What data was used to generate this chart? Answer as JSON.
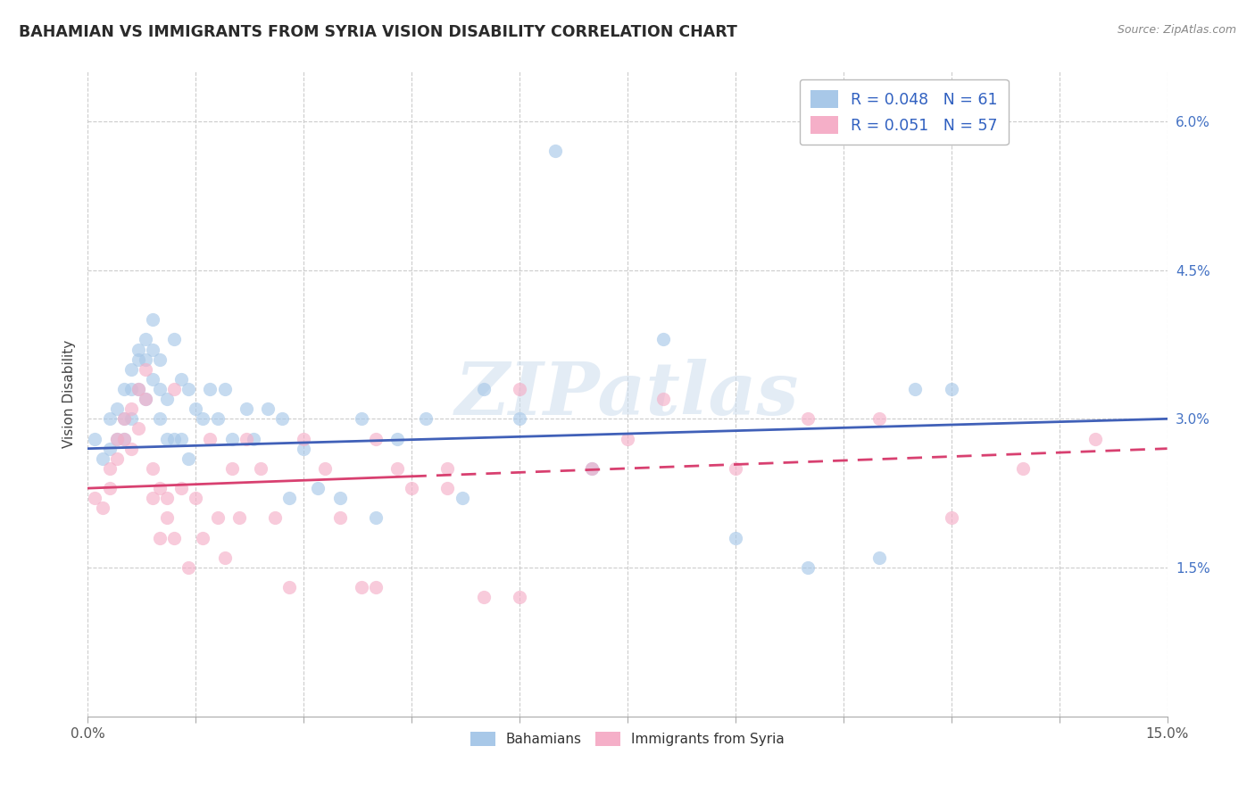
{
  "title": "BAHAMIAN VS IMMIGRANTS FROM SYRIA VISION DISABILITY CORRELATION CHART",
  "source": "Source: ZipAtlas.com",
  "ylabel": "Vision Disability",
  "xlim": [
    0.0,
    0.15
  ],
  "ylim": [
    0.0,
    0.065
  ],
  "xticks": [
    0.0,
    0.015,
    0.03,
    0.045,
    0.06,
    0.075,
    0.09,
    0.105,
    0.12,
    0.135,
    0.15
  ],
  "ytick_positions": [
    0.015,
    0.03,
    0.045,
    0.06
  ],
  "ytick_labels": [
    "1.5%",
    "3.0%",
    "4.5%",
    "6.0%"
  ],
  "legend_r1": "R = 0.048",
  "legend_n1": "N = 61",
  "legend_r2": "R = 0.051",
  "legend_n2": "N = 57",
  "color_blue": "#a8c8e8",
  "color_pink": "#f5afc8",
  "line_blue": "#4060b8",
  "line_pink": "#d84070",
  "watermark_text": "ZIPatlas",
  "bahamian_x": [
    0.001,
    0.002,
    0.003,
    0.003,
    0.004,
    0.004,
    0.005,
    0.005,
    0.005,
    0.006,
    0.006,
    0.006,
    0.007,
    0.007,
    0.007,
    0.008,
    0.008,
    0.008,
    0.009,
    0.009,
    0.009,
    0.01,
    0.01,
    0.01,
    0.011,
    0.011,
    0.012,
    0.012,
    0.013,
    0.013,
    0.014,
    0.014,
    0.015,
    0.016,
    0.017,
    0.018,
    0.019,
    0.02,
    0.022,
    0.023,
    0.025,
    0.027,
    0.028,
    0.03,
    0.032,
    0.035,
    0.038,
    0.04,
    0.043,
    0.047,
    0.052,
    0.055,
    0.06,
    0.065,
    0.07,
    0.08,
    0.09,
    0.1,
    0.11,
    0.115,
    0.12
  ],
  "bahamian_y": [
    0.028,
    0.026,
    0.03,
    0.027,
    0.031,
    0.028,
    0.033,
    0.03,
    0.028,
    0.035,
    0.033,
    0.03,
    0.037,
    0.036,
    0.033,
    0.038,
    0.036,
    0.032,
    0.04,
    0.037,
    0.034,
    0.036,
    0.033,
    0.03,
    0.032,
    0.028,
    0.038,
    0.028,
    0.034,
    0.028,
    0.033,
    0.026,
    0.031,
    0.03,
    0.033,
    0.03,
    0.033,
    0.028,
    0.031,
    0.028,
    0.031,
    0.03,
    0.022,
    0.027,
    0.023,
    0.022,
    0.03,
    0.02,
    0.028,
    0.03,
    0.022,
    0.033,
    0.03,
    0.057,
    0.025,
    0.038,
    0.018,
    0.015,
    0.016,
    0.033,
    0.033
  ],
  "syria_x": [
    0.001,
    0.002,
    0.003,
    0.003,
    0.004,
    0.004,
    0.005,
    0.005,
    0.006,
    0.006,
    0.007,
    0.007,
    0.008,
    0.008,
    0.009,
    0.009,
    0.01,
    0.01,
    0.011,
    0.011,
    0.012,
    0.012,
    0.013,
    0.014,
    0.015,
    0.016,
    0.017,
    0.018,
    0.019,
    0.02,
    0.021,
    0.022,
    0.024,
    0.026,
    0.028,
    0.03,
    0.033,
    0.035,
    0.038,
    0.04,
    0.043,
    0.045,
    0.05,
    0.055,
    0.06,
    0.04,
    0.05,
    0.06,
    0.07,
    0.075,
    0.08,
    0.09,
    0.1,
    0.11,
    0.12,
    0.13,
    0.14
  ],
  "syria_y": [
    0.022,
    0.021,
    0.025,
    0.023,
    0.028,
    0.026,
    0.03,
    0.028,
    0.031,
    0.027,
    0.033,
    0.029,
    0.035,
    0.032,
    0.025,
    0.022,
    0.023,
    0.018,
    0.02,
    0.022,
    0.033,
    0.018,
    0.023,
    0.015,
    0.022,
    0.018,
    0.028,
    0.02,
    0.016,
    0.025,
    0.02,
    0.028,
    0.025,
    0.02,
    0.013,
    0.028,
    0.025,
    0.02,
    0.013,
    0.013,
    0.025,
    0.023,
    0.023,
    0.012,
    0.012,
    0.028,
    0.025,
    0.033,
    0.025,
    0.028,
    0.032,
    0.025,
    0.03,
    0.03,
    0.02,
    0.025,
    0.028
  ],
  "trend_blue_start": 0.027,
  "trend_blue_end": 0.03,
  "trend_pink_start": 0.023,
  "trend_pink_end": 0.027,
  "trend_pink_solid_end": 0.045
}
